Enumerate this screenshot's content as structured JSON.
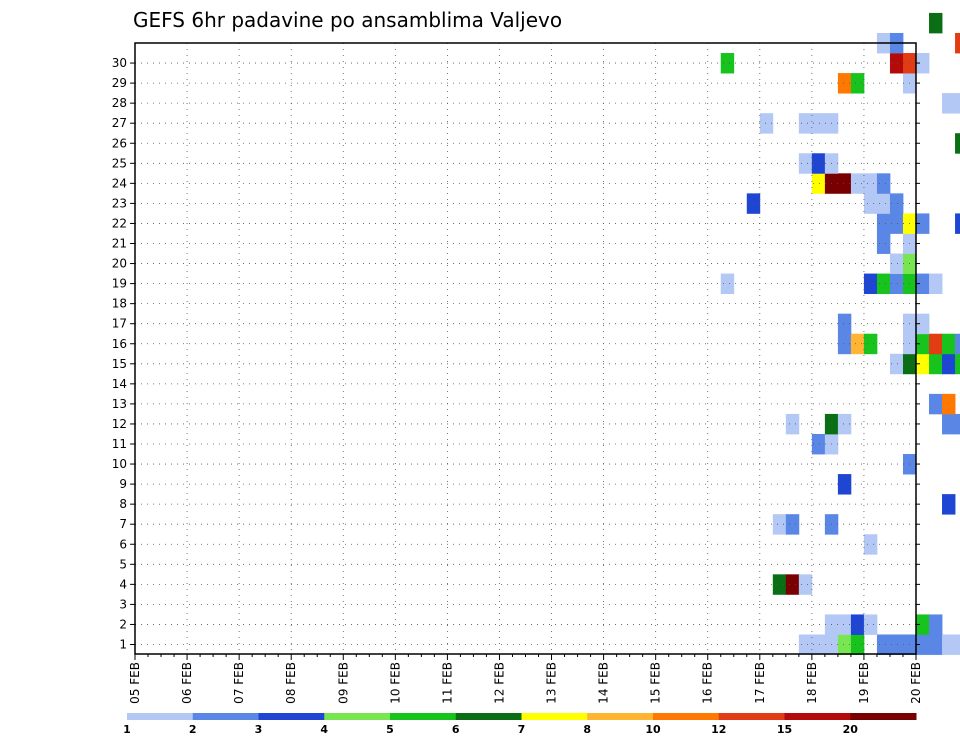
{
  "chart_data": {
    "type": "heatmap",
    "title": "GEFS 6hr padavine po ansamblima Valjevo",
    "x_tick_labels": [
      "05 FEB",
      "06 FEB",
      "07 FEB",
      "08 FEB",
      "09 FEB",
      "10 FEB",
      "11 FEB",
      "12 FEB",
      "13 FEB",
      "14 FEB",
      "15 FEB",
      "16 FEB",
      "17 FEB",
      "18 FEB",
      "19 FEB",
      "20 FEB"
    ],
    "y_tick_labels": [
      "1",
      "2",
      "3",
      "4",
      "5",
      "6",
      "7",
      "8",
      "9",
      "10",
      "11",
      "12",
      "13",
      "14",
      "15",
      "16",
      "17",
      "18",
      "19",
      "20",
      "21",
      "22",
      "23",
      "24",
      "25",
      "26",
      "27",
      "28",
      "29",
      "30"
    ],
    "x_range_days": [
      5,
      20
    ],
    "y_range": [
      0,
      30
    ],
    "steps_per_day": 4,
    "grid": "dotted",
    "colorbar": {
      "levels": [
        "1",
        "2",
        "3",
        "4",
        "5",
        "6",
        "7",
        "8",
        "10",
        "12",
        "15",
        "20"
      ],
      "colors": [
        "#b4c8f5",
        "#5a87e6",
        "#1e46d2",
        "#78e650",
        "#19c31e",
        "#0a6e14",
        "#ffff00",
        "#ffb432",
        "#ff7800",
        "#e13c14",
        "#b40a0a",
        "#780000"
      ]
    },
    "cells": [
      [
        51,
        0,
        1
      ],
      [
        52,
        0,
        1
      ],
      [
        53,
        0,
        1
      ],
      [
        54,
        0,
        4
      ],
      [
        55,
        0,
        5
      ],
      [
        57,
        0,
        2
      ],
      [
        58,
        0,
        2
      ],
      [
        59,
        0,
        2
      ],
      [
        60,
        0,
        2
      ],
      [
        61,
        0,
        2
      ],
      [
        62,
        0,
        1
      ],
      [
        63,
        0,
        1
      ],
      [
        64,
        0,
        1
      ],
      [
        65,
        0,
        1
      ],
      [
        66,
        0,
        1
      ],
      [
        67,
        0,
        2
      ],
      [
        68,
        0,
        2
      ],
      [
        69,
        0,
        3
      ],
      [
        70,
        0,
        1
      ],
      [
        71,
        0,
        1
      ],
      [
        72,
        0,
        1
      ],
      [
        73,
        0,
        1
      ],
      [
        74,
        0,
        1
      ],
      [
        75,
        0,
        1
      ],
      [
        76,
        0,
        1
      ],
      [
        77,
        0,
        1
      ],
      [
        78,
        0,
        1
      ],
      [
        79,
        0,
        1
      ],
      [
        80,
        0,
        1
      ],
      [
        81,
        0,
        1
      ],
      [
        82,
        0,
        1
      ],
      [
        83,
        0,
        1
      ],
      [
        84,
        0,
        2
      ],
      [
        85,
        0,
        2
      ],
      [
        53,
        1,
        1
      ],
      [
        54,
        1,
        1
      ],
      [
        55,
        1,
        3
      ],
      [
        56,
        1,
        1
      ],
      [
        60,
        1,
        5
      ],
      [
        61,
        1,
        2
      ],
      [
        65,
        1,
        1
      ],
      [
        76,
        1,
        1
      ],
      [
        69,
        2,
        1
      ],
      [
        70,
        2,
        6
      ],
      [
        71,
        2,
        9
      ],
      [
        72,
        2,
        11
      ],
      [
        73,
        2,
        3
      ],
      [
        74,
        2,
        1
      ],
      [
        49,
        3,
        6
      ],
      [
        50,
        3,
        12
      ],
      [
        51,
        3,
        1
      ],
      [
        74,
        4,
        1
      ],
      [
        75,
        4,
        1
      ],
      [
        76,
        4,
        1
      ],
      [
        56,
        5,
        1
      ],
      [
        74,
        5,
        1
      ],
      [
        49,
        6,
        1
      ],
      [
        50,
        6,
        2
      ],
      [
        53,
        6,
        2
      ],
      [
        89,
        6,
        2
      ],
      [
        62,
        7,
        3
      ],
      [
        68,
        7,
        5
      ],
      [
        69,
        7,
        5
      ],
      [
        70,
        7,
        2
      ],
      [
        71,
        7,
        3
      ],
      [
        72,
        7,
        3
      ],
      [
        74,
        7,
        1
      ],
      [
        75,
        7,
        2
      ],
      [
        54,
        8,
        3
      ],
      [
        74,
        8,
        6
      ],
      [
        76,
        8,
        1
      ],
      [
        79,
        8,
        1
      ],
      [
        95,
        8,
        2
      ],
      [
        59,
        9,
        2
      ],
      [
        66,
        9,
        3
      ],
      [
        67,
        9,
        3
      ],
      [
        68,
        9,
        5
      ],
      [
        93,
        9,
        5
      ],
      [
        94,
        9,
        6
      ],
      [
        95,
        9,
        5
      ],
      [
        52,
        10,
        2
      ],
      [
        53,
        10,
        1
      ],
      [
        50,
        11,
        1
      ],
      [
        53,
        11,
        6
      ],
      [
        54,
        11,
        1
      ],
      [
        62,
        11,
        2
      ],
      [
        63,
        11,
        2
      ],
      [
        81,
        11,
        1
      ],
      [
        61,
        12,
        2
      ],
      [
        62,
        12,
        9
      ],
      [
        68,
        12,
        5
      ],
      [
        69,
        12,
        12
      ],
      [
        70,
        12,
        3
      ],
      [
        71,
        12,
        1
      ],
      [
        82,
        13,
        1
      ],
      [
        83,
        13,
        1
      ],
      [
        58,
        14,
        1
      ],
      [
        59,
        14,
        6
      ],
      [
        60,
        14,
        7
      ],
      [
        61,
        14,
        5
      ],
      [
        62,
        14,
        3
      ],
      [
        63,
        14,
        5
      ],
      [
        64,
        14,
        7
      ],
      [
        88,
        14,
        2
      ],
      [
        89,
        14,
        2
      ],
      [
        90,
        14,
        1
      ],
      [
        54,
        15,
        2
      ],
      [
        55,
        15,
        8
      ],
      [
        56,
        15,
        5
      ],
      [
        59,
        15,
        1
      ],
      [
        60,
        15,
        5
      ],
      [
        61,
        15,
        10
      ],
      [
        62,
        15,
        5
      ],
      [
        63,
        15,
        2
      ],
      [
        88,
        15,
        1
      ],
      [
        54,
        16,
        2
      ],
      [
        59,
        16,
        1
      ],
      [
        60,
        16,
        1
      ],
      [
        78,
        16,
        8
      ],
      [
        79,
        16,
        2
      ],
      [
        80,
        16,
        3
      ],
      [
        76,
        17,
        1
      ],
      [
        78,
        17,
        2
      ],
      [
        80,
        17,
        1
      ],
      [
        45,
        18,
        1
      ],
      [
        56,
        18,
        3
      ],
      [
        57,
        18,
        5
      ],
      [
        58,
        18,
        2
      ],
      [
        59,
        18,
        5
      ],
      [
        60,
        18,
        2
      ],
      [
        61,
        18,
        1
      ],
      [
        58,
        19,
        1
      ],
      [
        59,
        19,
        4
      ],
      [
        66,
        19,
        1
      ],
      [
        67,
        19,
        1
      ],
      [
        68,
        19,
        2
      ],
      [
        69,
        19,
        3
      ],
      [
        70,
        19,
        2
      ],
      [
        72,
        19,
        3
      ],
      [
        73,
        19,
        9
      ],
      [
        74,
        19,
        7
      ],
      [
        75,
        19,
        2
      ],
      [
        78,
        19,
        1
      ],
      [
        79,
        19,
        1
      ],
      [
        80,
        19,
        1
      ],
      [
        57,
        20,
        2
      ],
      [
        59,
        20,
        1
      ],
      [
        78,
        20,
        1
      ],
      [
        57,
        21,
        2
      ],
      [
        58,
        21,
        2
      ],
      [
        59,
        21,
        7
      ],
      [
        60,
        21,
        2
      ],
      [
        63,
        21,
        3
      ],
      [
        79,
        21,
        1
      ],
      [
        47,
        22,
        3
      ],
      [
        56,
        22,
        1
      ],
      [
        57,
        22,
        1
      ],
      [
        58,
        22,
        2
      ],
      [
        52,
        23,
        7
      ],
      [
        53,
        23,
        12
      ],
      [
        54,
        23,
        12
      ],
      [
        55,
        23,
        1
      ],
      [
        56,
        23,
        1
      ],
      [
        57,
        23,
        2
      ],
      [
        51,
        24,
        1
      ],
      [
        52,
        24,
        3
      ],
      [
        53,
        24,
        1
      ],
      [
        65,
        24,
        2
      ],
      [
        66,
        24,
        1
      ],
      [
        74,
        24,
        5
      ],
      [
        75,
        24,
        2
      ],
      [
        63,
        25,
        6
      ],
      [
        64,
        25,
        7
      ],
      [
        65,
        25,
        5
      ],
      [
        66,
        25,
        6
      ],
      [
        67,
        25,
        2
      ],
      [
        68,
        25,
        5
      ],
      [
        69,
        25,
        5
      ],
      [
        70,
        25,
        1
      ],
      [
        48,
        26,
        1
      ],
      [
        51,
        26,
        1
      ],
      [
        52,
        26,
        1
      ],
      [
        53,
        26,
        1
      ],
      [
        78,
        26,
        3
      ],
      [
        89,
        26,
        2
      ],
      [
        62,
        27,
        1
      ],
      [
        63,
        27,
        1
      ],
      [
        76,
        27,
        1
      ],
      [
        89,
        27,
        5
      ],
      [
        54,
        28,
        9
      ],
      [
        55,
        28,
        5
      ],
      [
        59,
        28,
        1
      ],
      [
        76,
        28,
        1
      ],
      [
        77,
        28,
        2
      ],
      [
        78,
        28,
        1
      ],
      [
        45,
        29,
        5
      ],
      [
        58,
        29,
        11
      ],
      [
        59,
        29,
        10
      ],
      [
        60,
        29,
        1
      ],
      [
        57,
        30,
        1
      ],
      [
        58,
        30,
        2
      ],
      [
        63,
        30,
        10
      ],
      [
        76,
        30,
        6
      ],
      [
        77,
        30,
        1
      ],
      [
        61,
        31,
        6
      ],
      [
        76,
        31,
        3
      ],
      [
        79,
        31,
        5
      ],
      [
        80,
        31,
        3
      ],
      [
        84,
        31,
        5
      ],
      [
        85,
        31,
        1
      ]
    ]
  }
}
